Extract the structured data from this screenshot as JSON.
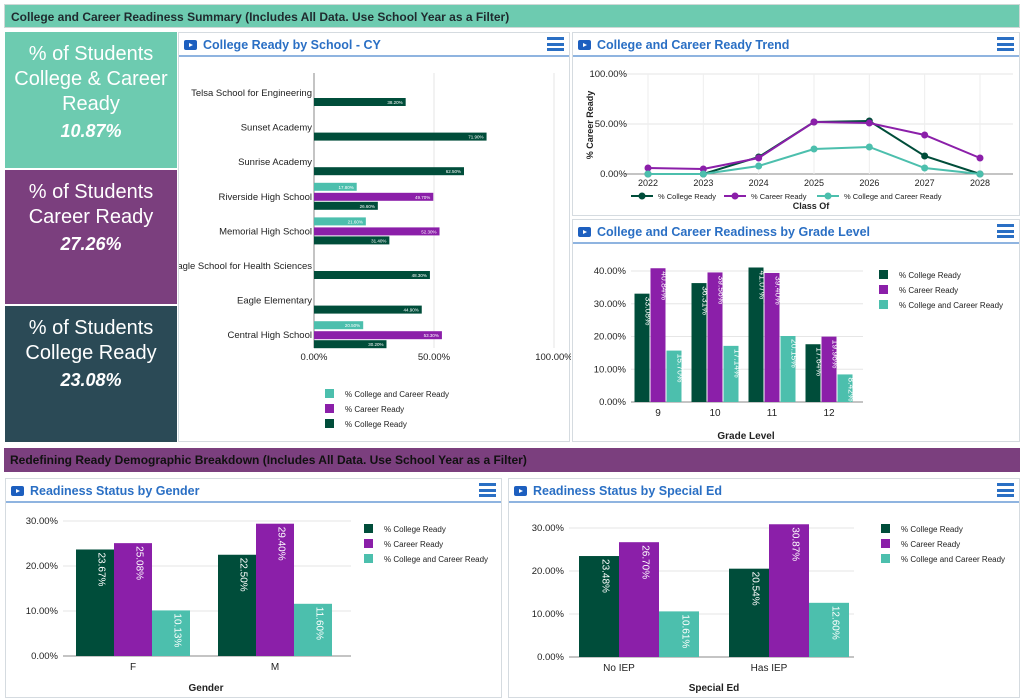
{
  "headers": {
    "summary": "College and Career Readiness Summary (Includes All Data. Use School Year as a Filter)",
    "demographic": "Redefining Ready Demographic Breakdown (Includes All Data. Use School Year as a Filter)"
  },
  "kpis": [
    {
      "label": "% of Students College & Career Ready",
      "value": "10.87%",
      "color": "#6dcbb0"
    },
    {
      "label": "% of Students Career Ready",
      "value": "27.26%",
      "color": "#7b3f7e"
    },
    {
      "label": "% of Students College Ready",
      "value": "23.08%",
      "color": "#2b4a56"
    }
  ],
  "panels": {
    "school": "College Ready by School - CY",
    "trend": "College and Career Ready Trend",
    "grade": "College and Career Readiness by Grade Level",
    "gender": "Readiness Status by Gender",
    "sped": "Readiness Status by Special Ed"
  },
  "colors": {
    "college": "#004d3a",
    "career": "#8b1fa9",
    "both": "#4cbfad"
  },
  "chart_data": [
    {
      "type": "bar",
      "orientation": "horizontal",
      "categories": [
        "Telsa School for Engineering",
        "Sunset Academy",
        "Sunrise Academy",
        "Riverside High School",
        "Memorial High School",
        "Eagle School for Health Sciences",
        "Eagle Elementary",
        "Central High School"
      ],
      "series": [
        {
          "name": "% College and Career Ready",
          "values": [
            null,
            null,
            null,
            17.8,
            21.6,
            null,
            null,
            20.5
          ]
        },
        {
          "name": "% Career Ready",
          "values": [
            null,
            null,
            null,
            49.7,
            52.3,
            null,
            null,
            53.3
          ]
        },
        {
          "name": "% College Ready",
          "values": [
            38.2,
            71.9,
            62.5,
            26.6,
            31.4,
            48.3,
            44.9,
            30.2
          ]
        }
      ],
      "xlim": [
        0,
        100
      ],
      "xticks": [
        "0.00%",
        "50.00%",
        "100.00%"
      ],
      "legend": "bottom"
    },
    {
      "type": "line",
      "x": [
        "2022",
        "2023",
        "2024",
        "2025",
        "2026",
        "2027",
        "2028"
      ],
      "xlabel": "Class Of",
      "ylabel": "% Career Ready",
      "ylim": [
        0,
        100
      ],
      "yticks": [
        "0.00%",
        "50.00%",
        "100.00%"
      ],
      "series": [
        {
          "name": "% College Ready",
          "values": [
            0,
            0,
            17,
            52,
            53,
            18,
            0
          ]
        },
        {
          "name": "% Career Ready",
          "values": [
            6,
            5,
            16,
            52,
            51,
            39,
            16
          ]
        },
        {
          "name": "% College and Career Ready",
          "values": [
            0,
            0,
            8,
            25,
            27,
            6,
            0
          ]
        }
      ],
      "legend": "bottom"
    },
    {
      "type": "bar",
      "categories": [
        "9",
        "10",
        "11",
        "12"
      ],
      "xlabel": "Grade Level",
      "ylim": [
        0,
        40
      ],
      "yticks": [
        "0.00%",
        "10.00%",
        "20.00%",
        "30.00%",
        "40.00%"
      ],
      "series": [
        {
          "name": "% College Ready",
          "values": [
            33.08,
            36.31,
            41.07,
            17.64
          ]
        },
        {
          "name": "% Career Ready",
          "values": [
            40.84,
            39.56,
            39.4,
            19.96
          ]
        },
        {
          "name": "% College and Career Ready",
          "values": [
            15.7,
            17.14,
            20.15,
            8.42
          ]
        }
      ],
      "legend": "right"
    },
    {
      "type": "bar",
      "categories": [
        "F",
        "M"
      ],
      "xlabel": "Gender",
      "ylim": [
        0,
        30
      ],
      "yticks": [
        "0.00%",
        "10.00%",
        "20.00%",
        "30.00%"
      ],
      "series": [
        {
          "name": "% College Ready",
          "values": [
            23.67,
            22.5
          ]
        },
        {
          "name": "% Career Ready",
          "values": [
            25.08,
            29.4
          ]
        },
        {
          "name": "% College and Career Ready",
          "values": [
            10.13,
            11.6
          ]
        }
      ],
      "legend": "right"
    },
    {
      "type": "bar",
      "categories": [
        "No IEP",
        "Has IEP"
      ],
      "xlabel": "Special Ed",
      "ylim": [
        0,
        30
      ],
      "yticks": [
        "0.00%",
        "10.00%",
        "20.00%",
        "30.00%"
      ],
      "series": [
        {
          "name": "% College Ready",
          "values": [
            23.48,
            20.54
          ]
        },
        {
          "name": "% Career Ready",
          "values": [
            26.7,
            30.87
          ]
        },
        {
          "name": "% College and Career Ready",
          "values": [
            10.61,
            12.6
          ]
        }
      ],
      "legend": "right"
    }
  ]
}
